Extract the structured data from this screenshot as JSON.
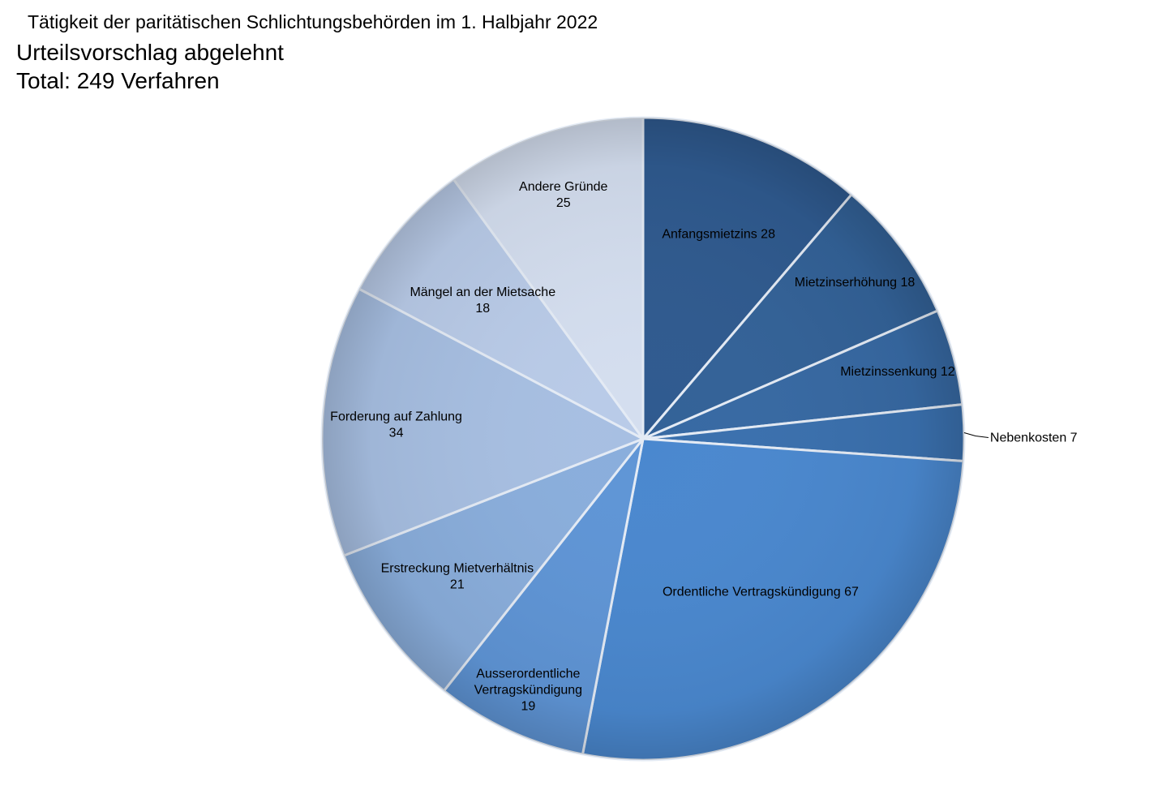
{
  "chart_data": {
    "type": "pie",
    "title": "Tätigkeit der paritätischen Schlichtungsbehörden im 1. Halbjahr 2022",
    "subtitle": "Urteilsvorschlag abgelehnt",
    "total_label": "Total: 249 Verfahren",
    "slices": [
      {
        "label": "Anfangsmietzins",
        "value": 28,
        "color": "#2f5a8f"
      },
      {
        "label": "Mietzinserhöhung",
        "value": 18,
        "color": "#336298"
      },
      {
        "label": "Mietzinssenkung",
        "value": 12,
        "color": "#3769a3"
      },
      {
        "label": "Nebenkosten",
        "value": 7,
        "color": "#3a70ae"
      },
      {
        "label": "Ordentliche Vertragskündigung",
        "value": 67,
        "color": "#4a88cf"
      },
      {
        "label": "Ausserordentliche Vertragskündigung",
        "value": 19,
        "color": "#5f95d6"
      },
      {
        "label": "Erstreckung Mietverhältnis",
        "value": 21,
        "color": "#8aaedc"
      },
      {
        "label": "Forderung auf Zahlung",
        "value": 34,
        "color": "#a7bfe2"
      },
      {
        "label": "Mängel an der Mietsache",
        "value": 18,
        "color": "#b9cbe8"
      },
      {
        "label": "Andere Gründe",
        "value": 25,
        "color": "#d4deef"
      }
    ]
  }
}
